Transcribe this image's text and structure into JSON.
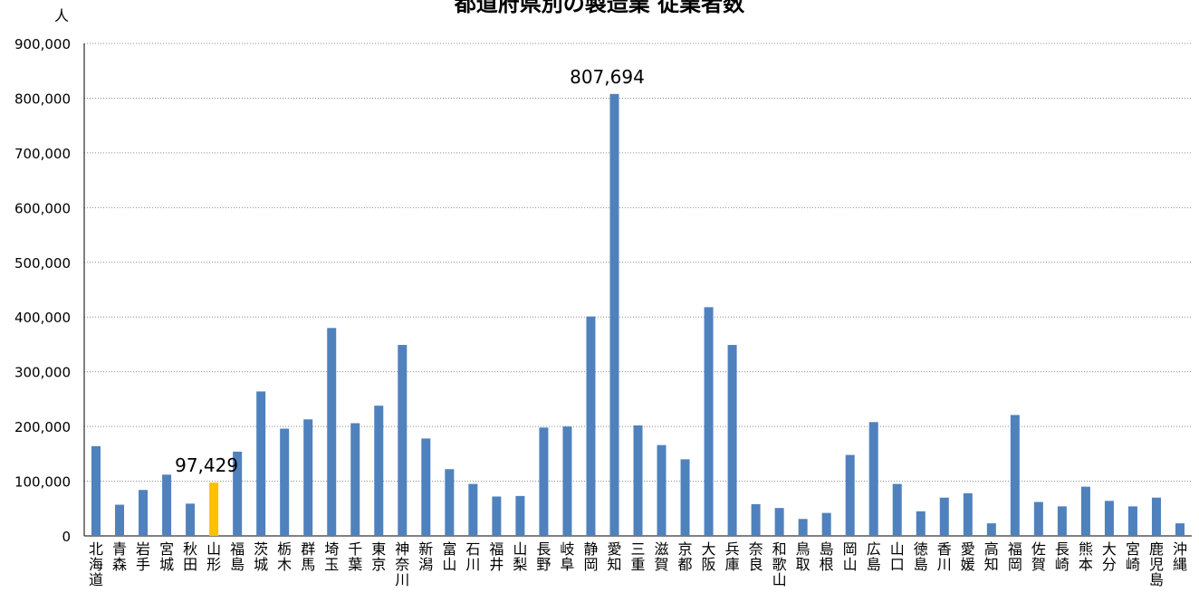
{
  "chart_data": {
    "type": "bar",
    "title": "都道府県別の製造業 従業者数",
    "ylabel": "人",
    "xlabel": "",
    "ylim": [
      0,
      900000
    ],
    "yticks": [
      "0",
      "100,000",
      "200,000",
      "300,000",
      "400,000",
      "500,000",
      "600,000",
      "700,000",
      "800,000",
      "900,000"
    ],
    "grid": true,
    "highlight_color": "#FFC000",
    "bar_color": "#4F81BD",
    "categories": [
      "北海道",
      "青森",
      "岩手",
      "宮城",
      "秋田",
      "山形",
      "福島",
      "茨城",
      "栃木",
      "群馬",
      "埼玉",
      "千葉",
      "東京",
      "神奈川",
      "新潟",
      "富山",
      "石川",
      "福井",
      "山梨",
      "長野",
      "岐阜",
      "静岡",
      "愛知",
      "三重",
      "滋賀",
      "京都",
      "大阪",
      "兵庫",
      "奈良",
      "和歌山",
      "鳥取",
      "島根",
      "岡山",
      "広島",
      "山口",
      "徳島",
      "香川",
      "愛媛",
      "高知",
      "福岡",
      "佐賀",
      "長崎",
      "熊本",
      "大分",
      "宮崎",
      "鹿児島",
      "沖縄"
    ],
    "values": [
      164000,
      57000,
      84000,
      112000,
      59000,
      97429,
      154000,
      264000,
      196000,
      213000,
      380000,
      206000,
      238000,
      349000,
      178000,
      122000,
      95000,
      72000,
      73000,
      198000,
      200000,
      401000,
      807694,
      202000,
      166000,
      140000,
      418000,
      349000,
      58000,
      51000,
      31000,
      42000,
      148000,
      208000,
      95000,
      45000,
      70000,
      78000,
      23000,
      221000,
      62000,
      54000,
      90000,
      64000,
      54000,
      70000,
      23000
    ],
    "highlight_index": 5,
    "annotations": [
      {
        "category": "山形",
        "text": "97,429"
      },
      {
        "category": "愛知",
        "text": "807,694"
      }
    ]
  }
}
